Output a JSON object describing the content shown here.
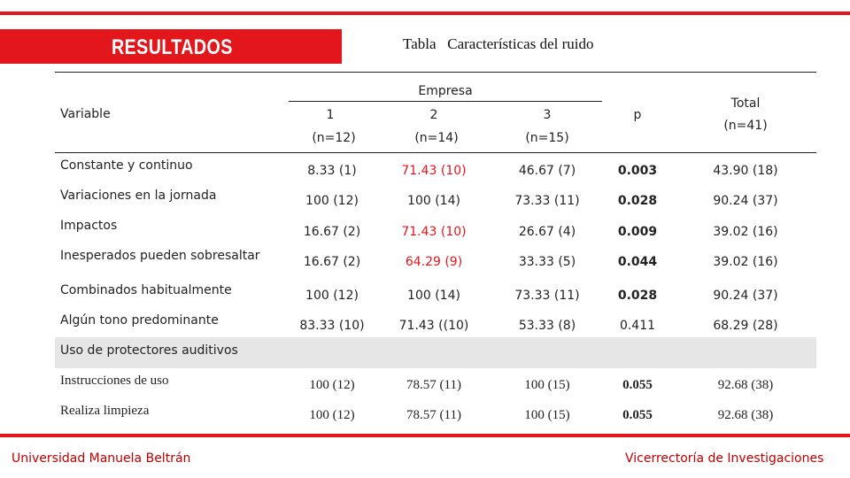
{
  "slide": {
    "section_label": "RESULTADOS",
    "table_title": "Tabla   Características del ruido",
    "footer_left": "Universidad Manuela Beltrán",
    "footer_right": "Vicerrectoría de Investigaciones",
    "accent_color": "#e3161b"
  },
  "table": {
    "header": {
      "variable": "Variable",
      "group": "Empresa",
      "col1": "1",
      "col1_n": "(n=12)",
      "col2": "2",
      "col2_n": "(n=14)",
      "col3": "3",
      "col3_n": "(n=15)",
      "p": "p",
      "total": "Total",
      "total_n": "(n=41)"
    },
    "rows": [
      {
        "label": "Constante y continuo",
        "c1": "8.33 (1)",
        "c2": "71.43 (10)",
        "c3": "46.67 (7)",
        "p": "0.003",
        "total": "43.90 (18)"
      },
      {
        "label": "Variaciones en la jornada",
        "c1": "100 (12)",
        "c2": "100 (14)",
        "c3": "73.33 (11)",
        "p": "0.028",
        "total": "90.24 (37)"
      },
      {
        "label": "Impactos",
        "c1": "16.67 (2)",
        "c2": "71.43 (10)",
        "c3": "26.67 (4)",
        "p": "0.009",
        "total": "39.02 (16)"
      },
      {
        "label": "Inesperados pueden sobresaltar",
        "c1": "16.67 (2)",
        "c2": "64.29 (9)",
        "c3": "33.33 (5)",
        "p": "0.044",
        "total": "39.02 (16)"
      },
      {
        "label": "Combinados habitualmente",
        "c1": "100 (12)",
        "c2": "100 (14)",
        "c3": "73.33 (11)",
        "p": "0.028",
        "total": "90.24 (37)"
      },
      {
        "label": "Algún tono predominante",
        "c1": "83.33 (10)",
        "c2": "71.43 ((10)",
        "c3": "53.33 (8)",
        "p": "0.411",
        "total": "68.29 (28)"
      }
    ],
    "section_row": "Uso de protectores auditivos",
    "rows2": [
      {
        "label": "Instrucciones de uso",
        "c1": "100 (12)",
        "c2": "78.57 (11)",
        "c3": "100 (15)",
        "p": "0.055",
        "total": "92.68 (38)"
      },
      {
        "label": "Realiza limpieza",
        "c1": "100 (12)",
        "c2": "78.57 (11)",
        "c3": "100 (15)",
        "p": "0.055",
        "total": "92.68 (38)"
      }
    ]
  }
}
